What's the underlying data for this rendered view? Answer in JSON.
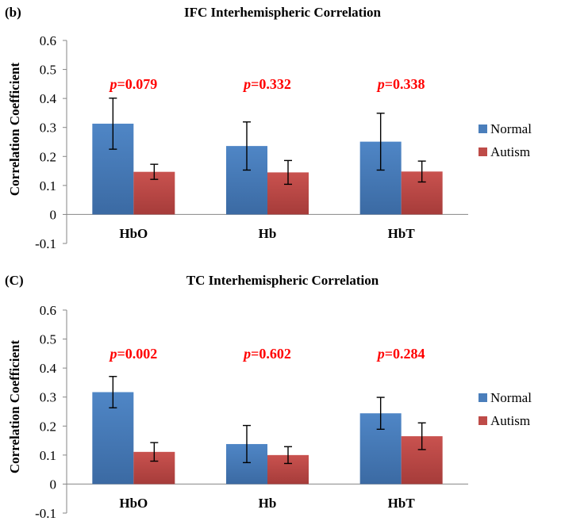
{
  "chart_data": [
    {
      "type": "bar",
      "panel_label": "(b)",
      "title": "IFC Interhemispheric Correlation",
      "ylabel": "Correlation Coefficient",
      "xlabel": "",
      "categories": [
        "HbO",
        "Hb",
        "HbT"
      ],
      "ylim": [
        -0.1,
        0.6
      ],
      "yticks": [
        "-0.1",
        "0",
        "0.1",
        "0.2",
        "0.3",
        "0.4",
        "0.5",
        "0.6"
      ],
      "grid": false,
      "legend": "right",
      "series": [
        {
          "name": "Normal",
          "color": "#4a7ebb",
          "values": [
            0.313,
            0.236,
            0.251
          ],
          "errors": [
            0.088,
            0.083,
            0.098
          ]
        },
        {
          "name": "Autism",
          "color": "#be4b48",
          "values": [
            0.147,
            0.145,
            0.148
          ],
          "errors": [
            0.026,
            0.041,
            0.036
          ]
        }
      ],
      "p_values": [
        "0.079",
        "0.332",
        "0.338"
      ],
      "annotation_prefix": "p",
      "annotation_color": "#ff0000"
    },
    {
      "type": "bar",
      "panel_label": "(C)",
      "title": "TC Interhemispheric Correlation",
      "ylabel": "Correlation Coefficient",
      "xlabel": "",
      "categories": [
        "HbO",
        "Hb",
        "HbT"
      ],
      "ylim": [
        -0.1,
        0.6
      ],
      "yticks": [
        "-0.1",
        "0",
        "0.1",
        "0.2",
        "0.3",
        "0.4",
        "0.5",
        "0.6"
      ],
      "grid": false,
      "legend": "right",
      "series": [
        {
          "name": "Normal",
          "color": "#4a7ebb",
          "values": [
            0.317,
            0.138,
            0.244
          ],
          "errors": [
            0.054,
            0.064,
            0.055
          ]
        },
        {
          "name": "Autism",
          "color": "#be4b48",
          "values": [
            0.111,
            0.1,
            0.165
          ],
          "errors": [
            0.032,
            0.029,
            0.046
          ]
        }
      ],
      "p_values": [
        "0.002",
        "0.602",
        "0.284"
      ],
      "annotation_prefix": "p",
      "annotation_color": "#ff0000"
    }
  ]
}
